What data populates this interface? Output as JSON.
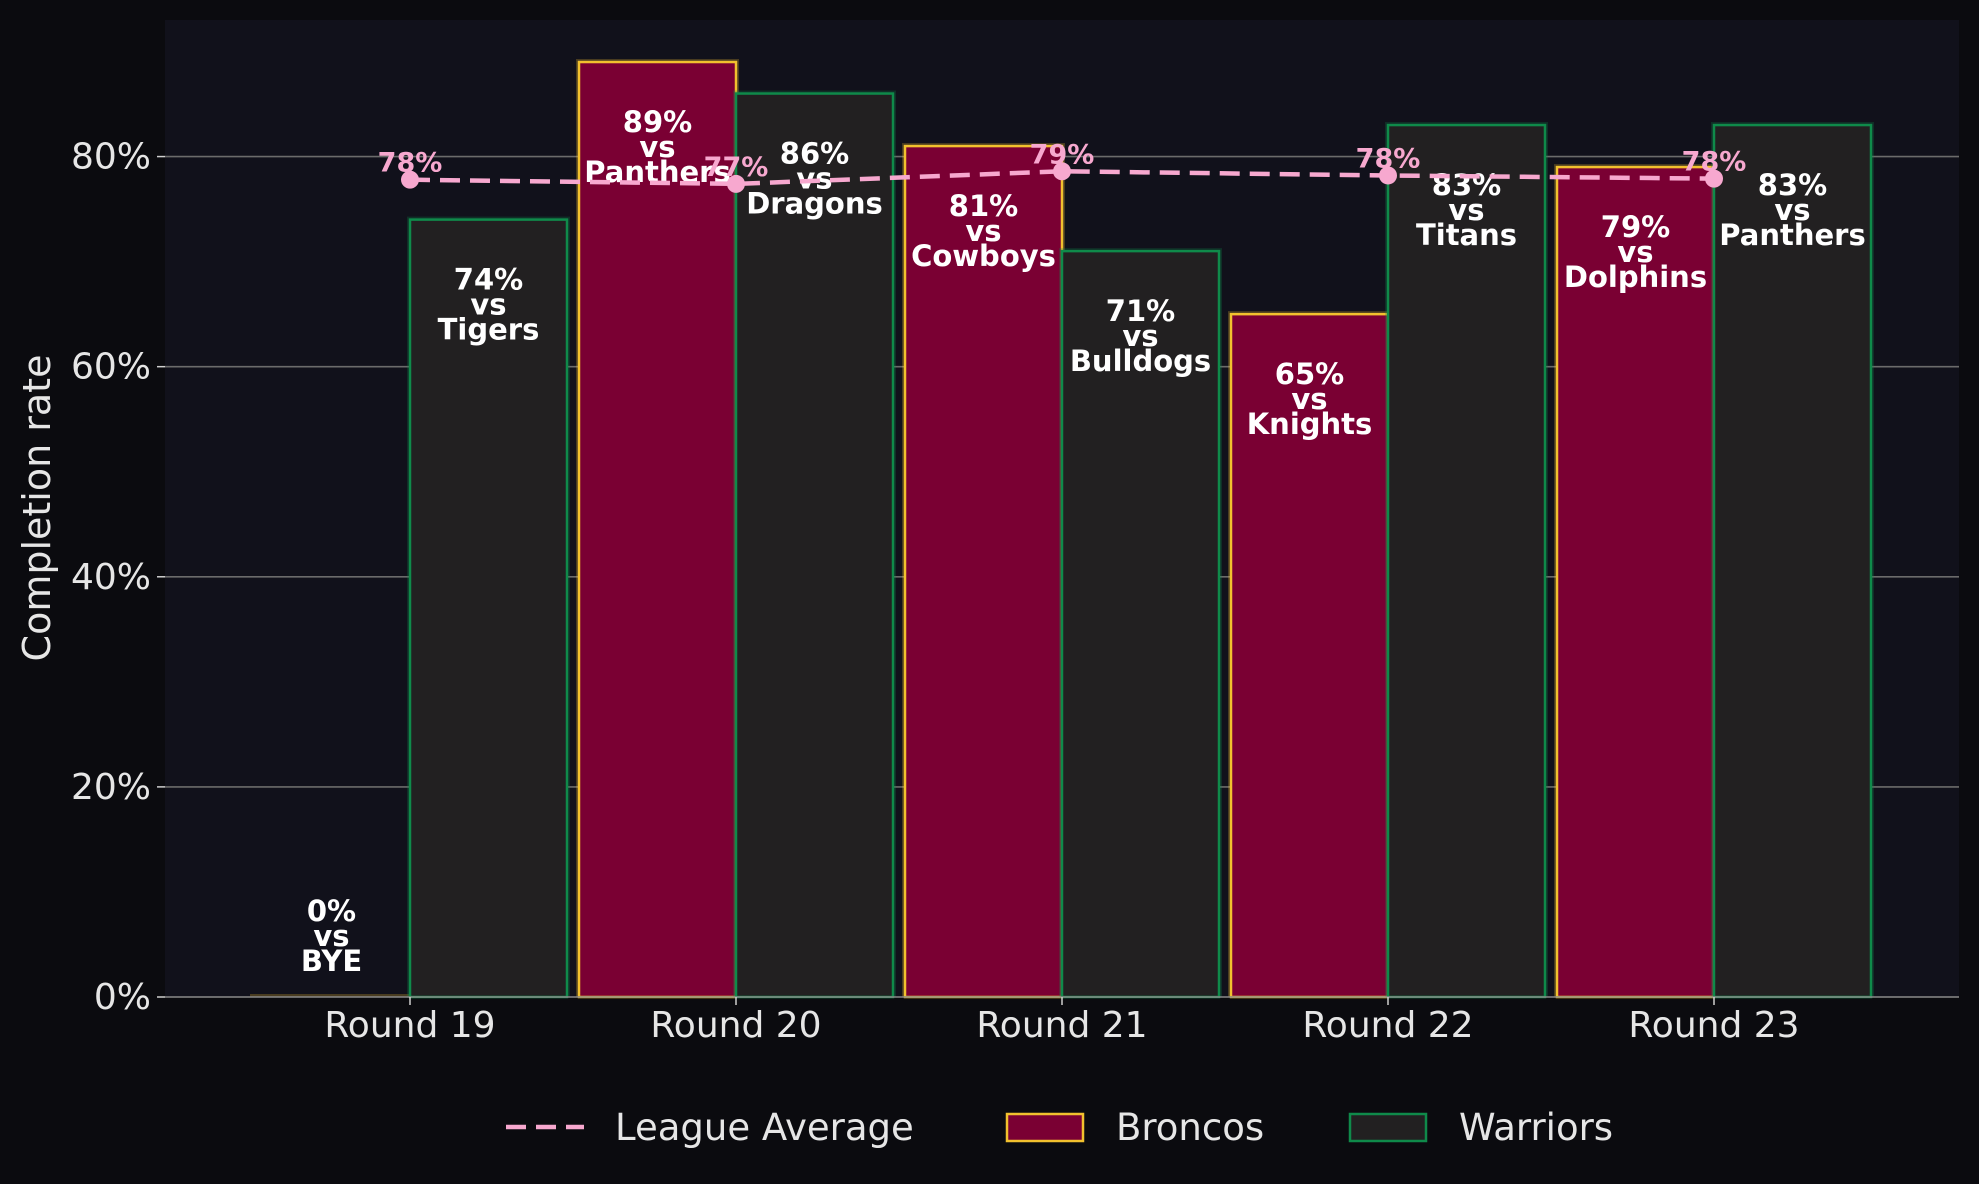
{
  "chart_data": {
    "type": "bar",
    "title": "",
    "xlabel": "",
    "ylabel": "Completion rate",
    "ylim": [
      0,
      93
    ],
    "yticks": [
      0,
      20,
      40,
      60,
      80
    ],
    "ytick_labels": [
      "0%",
      "20%",
      "40%",
      "60%",
      "80%"
    ],
    "grid": "horizontal",
    "legend_position": "bottom",
    "categories": [
      "Round 19",
      "Round 20",
      "Round 21",
      "Round 22",
      "Round 23"
    ],
    "series": [
      {
        "name": "Broncos",
        "kind": "bar",
        "fill": "#7a0033",
        "edge": "#f2c12e",
        "values": [
          0,
          89,
          81,
          65,
          79
        ],
        "labels": [
          [
            "0%",
            "vs",
            "BYE"
          ],
          [
            "89%",
            "vs",
            "Panthers"
          ],
          [
            "81%",
            "vs",
            "Cowboys"
          ],
          [
            "65%",
            "vs",
            "Knights"
          ],
          [
            "79%",
            "vs",
            "Dolphins"
          ]
        ]
      },
      {
        "name": "Warriors",
        "kind": "bar",
        "fill": "#222021",
        "edge": "#0f8a4a",
        "values": [
          74,
          86,
          71,
          83,
          83
        ],
        "labels": [
          [
            "74%",
            "vs",
            "Tigers"
          ],
          [
            "86%",
            "vs",
            "Dragons"
          ],
          [
            "71%",
            "vs",
            "Bulldogs"
          ],
          [
            "83%",
            "vs",
            "Titans"
          ],
          [
            "83%",
            "vs",
            "Panthers"
          ]
        ]
      },
      {
        "name": "League Average",
        "kind": "line",
        "style": "dashed",
        "color": "#f7a8cf",
        "values": [
          77.8,
          77.4,
          78.6,
          78.2,
          77.9
        ],
        "labels": [
          "78%",
          "77%",
          "79%",
          "78%",
          "78%"
        ]
      }
    ]
  },
  "colors": {
    "background": "#0b0b0f",
    "plot_background": "#11111b",
    "grid": "#6b6b6b",
    "text": "#e6e6e6"
  }
}
